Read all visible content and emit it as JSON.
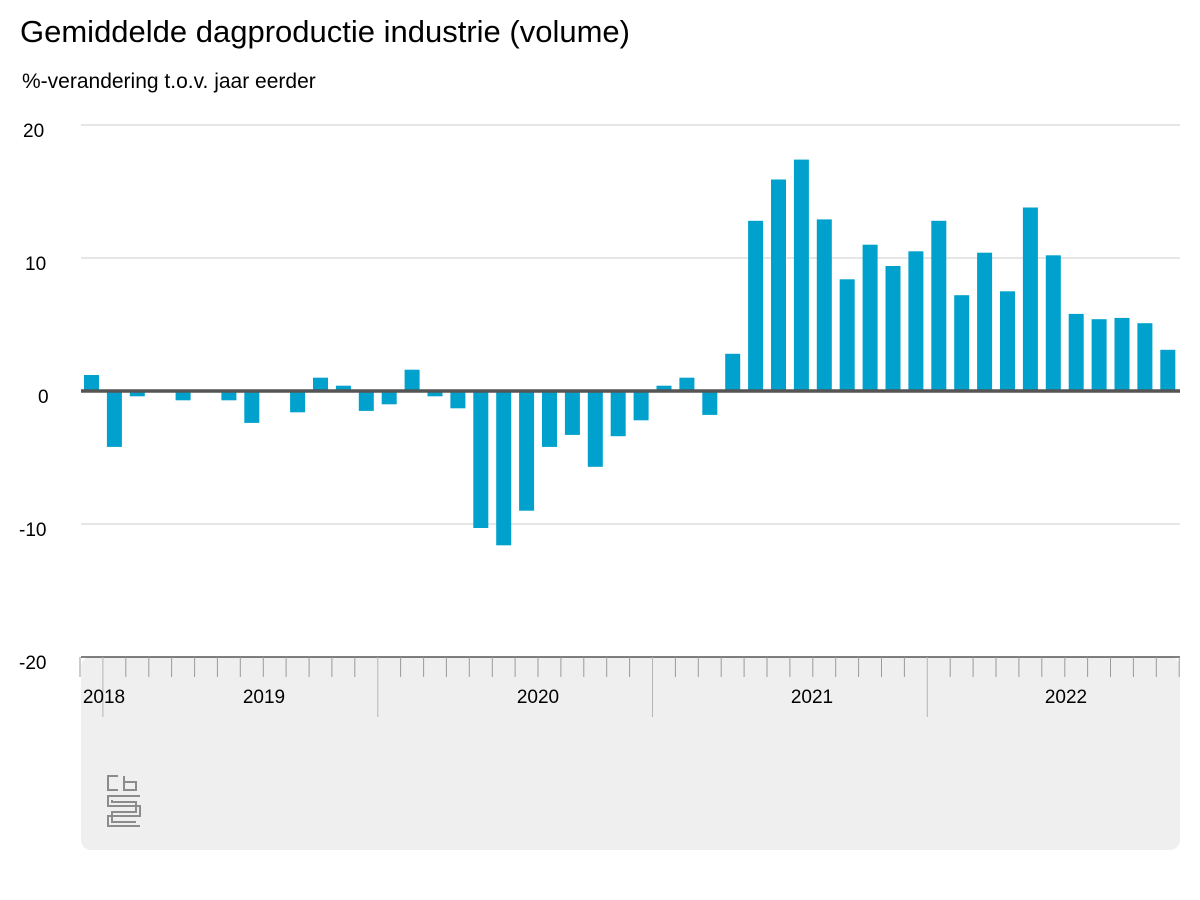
{
  "chart_data": {
    "type": "bar",
    "title": "Gemiddelde dagproductie industrie (volume)",
    "subtitle": "%-verandering t.o.v. jaar eerder",
    "ylim": [
      -20,
      20
    ],
    "y_ticks": [
      "20",
      "10",
      "0",
      "-10",
      "-20"
    ],
    "year_labels": [
      "2018",
      "2019",
      "2020",
      "2021",
      "2022"
    ],
    "grid": true,
    "colors": {
      "bar": "#00a1cd",
      "axis_band": "#efefef",
      "grid": "#cccccc",
      "zero_line": "#555555"
    },
    "months": [
      "2018-12",
      "2019-01",
      "2019-02",
      "2019-03",
      "2019-04",
      "2019-05",
      "2019-06",
      "2019-07",
      "2019-08",
      "2019-09",
      "2019-10",
      "2019-11",
      "2019-12",
      "2020-01",
      "2020-02",
      "2020-03",
      "2020-04",
      "2020-05",
      "2020-06",
      "2020-07",
      "2020-08",
      "2020-09",
      "2020-10",
      "2020-11",
      "2020-12",
      "2021-01",
      "2021-02",
      "2021-03",
      "2021-04",
      "2021-05",
      "2021-06",
      "2021-07",
      "2021-08",
      "2021-09",
      "2021-10",
      "2021-11",
      "2021-12",
      "2022-01",
      "2022-02",
      "2022-03",
      "2022-04",
      "2022-05",
      "2022-06",
      "2022-07",
      "2022-08",
      "2022-09",
      "2022-10",
      "2022-11"
    ],
    "values": [
      1.2,
      -4.2,
      -0.4,
      0.0,
      -0.7,
      -0.1,
      -0.7,
      -2.4,
      0.0,
      -1.6,
      1.0,
      0.4,
      -1.5,
      -1.0,
      1.6,
      -0.4,
      -1.3,
      -10.3,
      -11.6,
      -9.0,
      -4.2,
      -3.3,
      -5.7,
      -3.4,
      -2.2,
      0.4,
      1.0,
      -1.8,
      2.8,
      12.8,
      15.9,
      17.4,
      12.9,
      8.4,
      11.0,
      9.4,
      10.5,
      12.8,
      7.2,
      10.4,
      7.5,
      13.8,
      10.2,
      5.8,
      5.4,
      5.5,
      5.1,
      3.1
    ]
  },
  "logo": {
    "name": "cbs-logo",
    "text": "cbs"
  }
}
